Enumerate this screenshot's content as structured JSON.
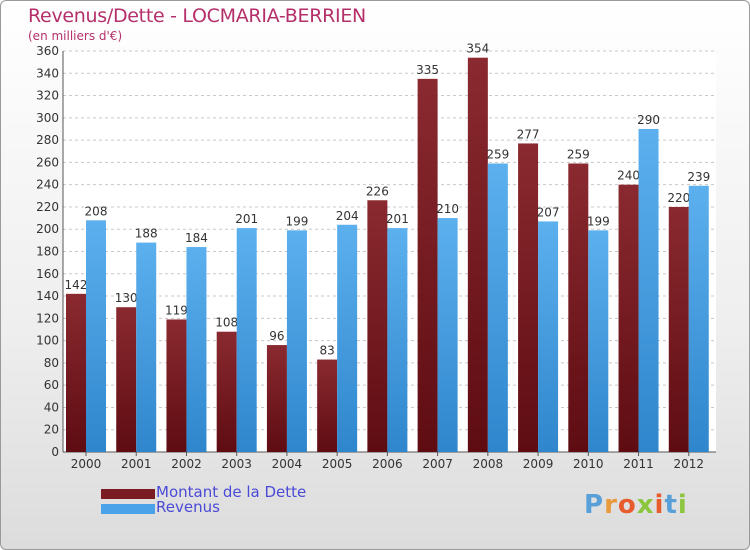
{
  "header": {
    "title": "Revenus/Dette - LOCMARIA-BERRIEN",
    "subtitle": "(en milliers d'€)"
  },
  "legend": {
    "items": [
      {
        "label": "Montant de la Dette",
        "color": "#7a1c22"
      },
      {
        "label": "Revenus",
        "color": "#4aa3e8"
      }
    ]
  },
  "logo": {
    "text": "Proxiti"
  },
  "chart_data": {
    "type": "bar",
    "title": "Revenus/Dette - LOCMARIA-BERRIEN",
    "subtitle": "(en milliers d'€)",
    "categories": [
      "2000",
      "2001",
      "2002",
      "2003",
      "2004",
      "2005",
      "2006",
      "2007",
      "2008",
      "2009",
      "2010",
      "2011",
      "2012"
    ],
    "series": [
      {
        "name": "Montant de la Dette",
        "color": "#7a1c22",
        "values": [
          142,
          130,
          119,
          108,
          96,
          83,
          226,
          335,
          354,
          277,
          259,
          240,
          220
        ]
      },
      {
        "name": "Revenus",
        "color": "#4aa3e8",
        "values": [
          208,
          188,
          184,
          201,
          199,
          204,
          201,
          210,
          259,
          207,
          199,
          290,
          239
        ]
      }
    ],
    "ylim": [
      0,
      360
    ],
    "yticks": [
      0,
      20,
      40,
      60,
      80,
      100,
      120,
      140,
      160,
      180,
      200,
      220,
      240,
      260,
      280,
      300,
      320,
      340,
      360
    ],
    "grid": true,
    "legend_position": "bottom-left"
  }
}
